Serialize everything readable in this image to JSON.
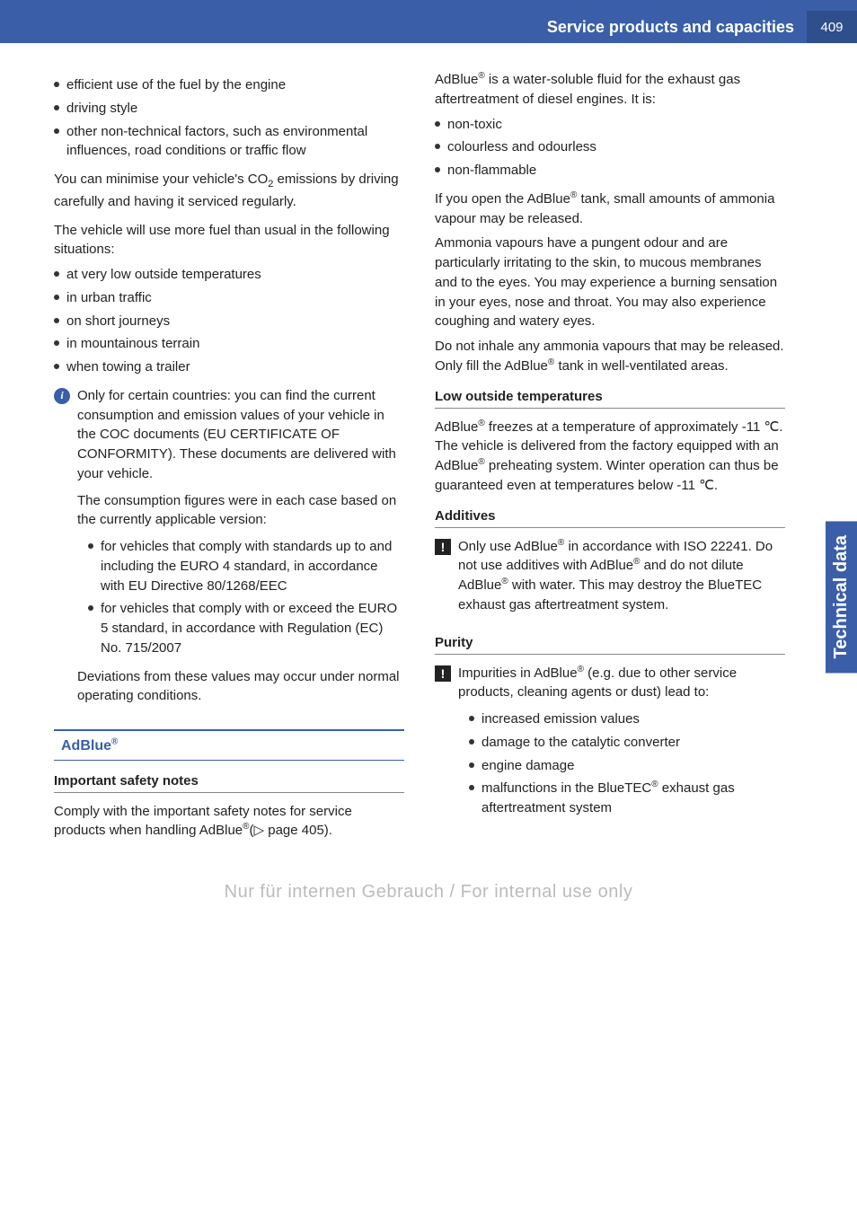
{
  "header": {
    "section_title": "Service products and capacities",
    "page_number": "409"
  },
  "side_tab": "Technical data",
  "footer_watermark": "Nur für internen Gebrauch / For internal use only",
  "left_col": {
    "bullets_top": [
      "efficient use of the fuel by the engine",
      "driving style",
      "other non-technical factors, such as environmental influences, road conditions or traffic flow"
    ],
    "co2_para_1": "You can minimise your vehicle's CO",
    "co2_sub": "2",
    "co2_para_2": " emissions by driving carefully and having it serviced regularly.",
    "more_fuel_intro": "The vehicle will use more fuel than usual in the following situations:",
    "more_fuel_bullets": [
      "at very low outside temperatures",
      "in urban traffic",
      "on short journeys",
      "in mountainous terrain",
      "when towing a trailer"
    ],
    "info_para_1": "Only for certain countries: you can find the current consumption and emission values of your vehicle in the COC documents (EU CERTIFICATE OF CONFORMITY). These documents are delivered with your vehicle.",
    "info_para_2": "The consumption figures were in each case based on the currently applicable version:",
    "info_bullets": [
      "for vehicles that comply with standards up to and including the EURO 4 standard, in accordance with EU Directive 80/1268/EEC",
      "for vehicles that comply with or exceed the EURO 5 standard, in accordance with Regulation (EC) No. 715/2007"
    ],
    "info_para_3": "Deviations from these values may occur under normal operating conditions.",
    "section_title": "AdBlue",
    "subhead_safety": "Important safety notes",
    "safety_para_1": "Comply with the important safety notes for service products when handling AdBlue",
    "safety_ref": "(▷ page 405)."
  },
  "right_col": {
    "intro_1": "AdBlue",
    "intro_2": " is a water-soluble fluid for the exhaust gas aftertreatment of diesel engines. It is:",
    "props": [
      "non-toxic",
      "colourless and odourless",
      "non-flammable"
    ],
    "open_tank_1": "If you open the AdBlue",
    "open_tank_2": " tank, small amounts of ammonia vapour may be released.",
    "ammonia_para": "Ammonia vapours have a pungent odour and are particularly irritating to the skin, to mucous membranes and to the eyes. You may experience a burning sensation in your eyes, nose and throat. You may also experience coughing and watery eyes.",
    "inhale_1": "Do not inhale any ammonia vapours that may be released. Only fill the AdBlue",
    "inhale_2": " tank in well-ventilated areas.",
    "subhead_low_temp": "Low outside temperatures",
    "low_temp_1": "AdBlue",
    "low_temp_2": " freezes at a temperature of approximately -11 ℃. The vehicle is delivered from the factory equipped with an AdBlue",
    "low_temp_3": " preheating system. Winter operation can thus be guaranteed even at temperatures below -11 ℃.",
    "subhead_additives": "Additives",
    "add_warn_1": "Only use AdBlue",
    "add_warn_2": " in accordance with ISO 22241. Do not use additives with AdBlue",
    "add_warn_3": " and do not dilute AdBlue",
    "add_warn_4": " with water. This may destroy the BlueTEC exhaust gas aftertreatment system.",
    "subhead_purity": "Purity",
    "purity_warn_1": "Impurities in AdBlue",
    "purity_warn_2": " (e.g. due to other service products, cleaning agents or dust) lead to:",
    "purity_bullets": [
      "increased emission values",
      "damage to the catalytic converter",
      "engine damage"
    ],
    "purity_last_1": "malfunctions in the BlueTEC",
    "purity_last_2": " exhaust gas aftertreatment system"
  },
  "reg_mark": "®"
}
